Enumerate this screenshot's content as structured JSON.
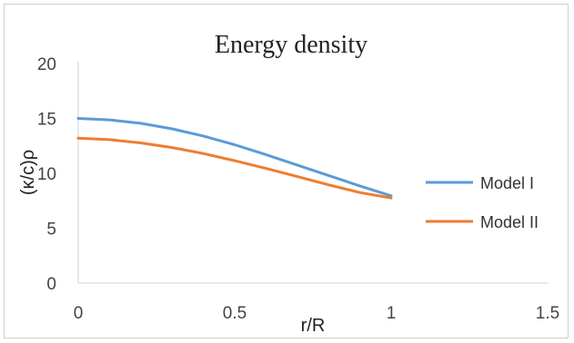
{
  "chart_data": {
    "type": "line",
    "title": "Energy density",
    "xlabel": "r/R",
    "ylabel": "(κ/c)ρ",
    "xlim": [
      0,
      1.5
    ],
    "ylim": [
      0,
      20
    ],
    "x_ticks": [
      "0",
      "0.5",
      "1",
      "1.5"
    ],
    "y_ticks": [
      "0",
      "5",
      "10",
      "15",
      "20"
    ],
    "grid": false,
    "legend_position": "right",
    "series": [
      {
        "name": "Model I",
        "color": "#5b9bd5",
        "x": [
          0,
          0.1,
          0.2,
          0.3,
          0.4,
          0.5,
          0.6,
          0.7,
          0.8,
          0.9,
          1.0
        ],
        "y": [
          15.0,
          14.87,
          14.55,
          14.05,
          13.4,
          12.6,
          11.7,
          10.75,
          9.8,
          8.85,
          7.95
        ]
      },
      {
        "name": "Model II",
        "color": "#ed7d31",
        "x": [
          0,
          0.1,
          0.2,
          0.3,
          0.4,
          0.5,
          0.6,
          0.7,
          0.8,
          0.9,
          1.0
        ],
        "y": [
          13.2,
          13.07,
          12.77,
          12.35,
          11.8,
          11.15,
          10.45,
          9.7,
          8.95,
          8.25,
          7.75
        ]
      }
    ]
  }
}
